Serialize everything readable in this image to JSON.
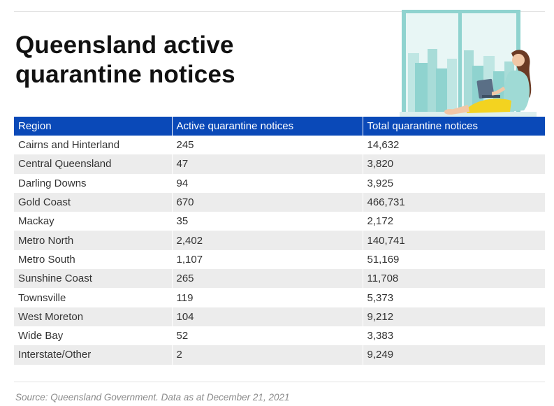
{
  "header": {
    "title_line1": "Queensland active",
    "title_line2": "quarantine notices"
  },
  "illustration": {
    "icon": "woman-at-window-with-laptop-illustration"
  },
  "table": {
    "columns": [
      "Region",
      "Active quarantine notices",
      "Total quarantine notices"
    ],
    "rows": [
      [
        "Cairns and Hinterland",
        "245",
        "14,632"
      ],
      [
        "Central Queensland",
        "47",
        "3,820"
      ],
      [
        "Darling Downs",
        "94",
        "3,925"
      ],
      [
        "Gold Coast",
        "670",
        "466,731"
      ],
      [
        "Mackay",
        "35",
        "2,172"
      ],
      [
        "Metro North",
        "2,402",
        "140,741"
      ],
      [
        "Metro South",
        "1,107",
        "51,169"
      ],
      [
        "Sunshine Coast",
        "265",
        "11,708"
      ],
      [
        "Townsville",
        "119",
        "5,373"
      ],
      [
        "West Moreton",
        "104",
        "9,212"
      ],
      [
        "Wide Bay",
        "52",
        "3,383"
      ],
      [
        "Interstate/Other",
        "2",
        "9,249"
      ]
    ]
  },
  "footer": {
    "source": "Source: Queensland Government. Data as at December  21, 2021"
  },
  "colors": {
    "header_bg": "#0a49b8",
    "stripe_bg": "#ececec",
    "accent_teal": "#8fd3cf"
  }
}
